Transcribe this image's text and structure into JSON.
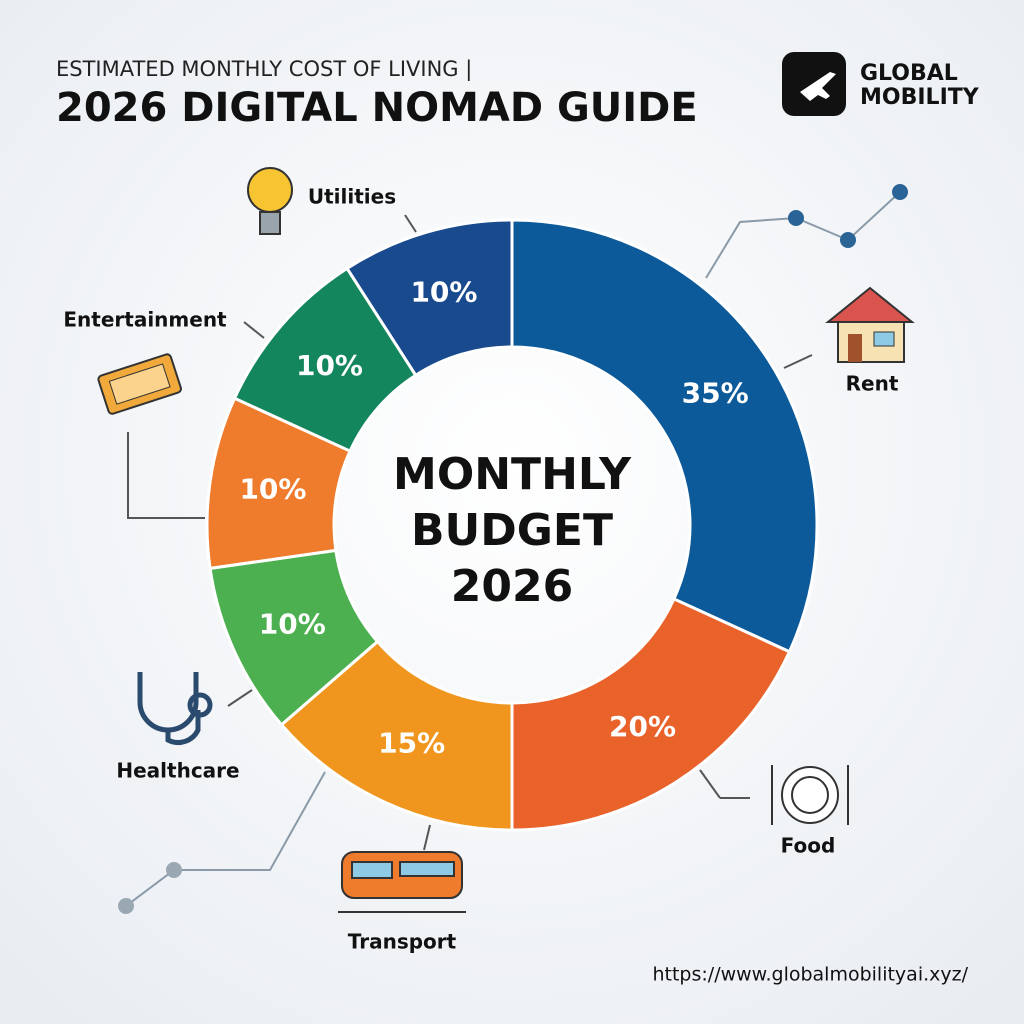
{
  "header": {
    "subtitle": "ESTIMATED MONTHLY COST OF LIVING |",
    "title": "2026 DIGITAL NOMAD GUIDE"
  },
  "brand": {
    "lines": [
      "GLOBAL",
      "MOBILITY"
    ]
  },
  "chart_data": {
    "type": "donut",
    "center_text": [
      "MONTHLY",
      "BUDGET",
      "2026"
    ],
    "categories": [
      "Rent",
      "Food",
      "Transport",
      "Healthcare",
      null,
      "Entertainment",
      "Utilities"
    ],
    "values": [
      35,
      20,
      15,
      10,
      10,
      10,
      10
    ],
    "value_labels": [
      "35%",
      "20%",
      "15%",
      "10%",
      "10%",
      "10%",
      "10%"
    ],
    "colors": [
      "#0d5a9a",
      "#e8622a",
      "#f0961f",
      "#4caf50",
      "#ef7b2c",
      "#14865e",
      "#1a4a8e"
    ]
  },
  "footer": {
    "url": "https://www.globalmobilityai.xyz/"
  }
}
